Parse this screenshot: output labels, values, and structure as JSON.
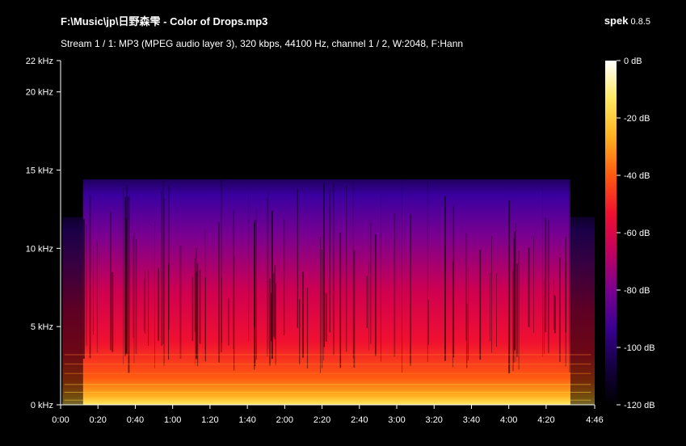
{
  "header": {
    "file_path": "F:\\Music\\jp\\日野森雫",
    "file_name": " - Color of Drops.mp3",
    "app_name": "spek",
    "app_version": " 0.8.5",
    "stream_info": "Stream 1 / 1: MP3 (MPEG audio layer 3), 320 kbps, 44100 Hz, channel 1 / 2, W:2048, F:Hann"
  },
  "chart_data": {
    "type": "heatmap",
    "x_ticks": [
      "0:00",
      "0:20",
      "0:40",
      "1:00",
      "1:20",
      "1:40",
      "2:00",
      "2:20",
      "2:40",
      "3:00",
      "3:20",
      "3:40",
      "4:00",
      "4:20",
      "4:46"
    ],
    "x_tick_seconds": [
      0,
      20,
      40,
      60,
      80,
      100,
      120,
      140,
      160,
      180,
      200,
      220,
      240,
      260,
      286
    ],
    "x_range_seconds": [
      0,
      286
    ],
    "y_ticks": [
      "0 kHz",
      "5 kHz",
      "10 kHz",
      "15 kHz",
      "20 kHz",
      "22 kHz"
    ],
    "y_tick_khz": [
      0,
      5,
      10,
      15,
      20,
      22
    ],
    "y_range_khz": [
      0,
      22
    ],
    "lowpass_cutoff_khz": 14.4,
    "colorbar_ticks": [
      "0 dB",
      "-20 dB",
      "-40 dB",
      "-60 dB",
      "-80 dB",
      "-100 dB",
      "-120 dB"
    ],
    "colorbar_db": [
      0,
      -20,
      -40,
      -60,
      -80,
      -100,
      -120
    ],
    "colorbar_range_db": [
      -120,
      0
    ],
    "colormap": [
      "#000000",
      "#140040",
      "#3a0090",
      "#7a0090",
      "#c00060",
      "#f01030",
      "#ff5a10",
      "#ffb020",
      "#ffe860",
      "#ffffff"
    ]
  }
}
